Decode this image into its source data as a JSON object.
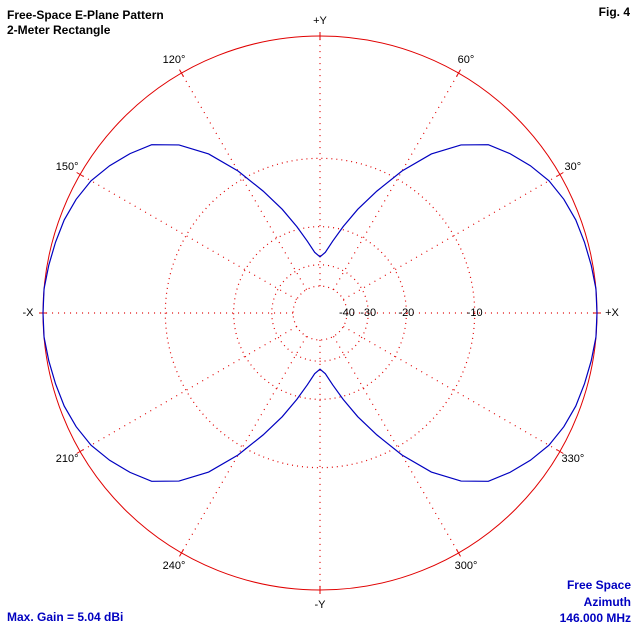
{
  "chart_data": {
    "type": "polar",
    "title": "Free-Space E-Plane Pattern",
    "subtitle": "2-Meter Rectangle",
    "figure_label": "Fig. 4",
    "annotations": [
      "Max. Gain = 5.04 dBi",
      "Free Space",
      "Azimuth",
      "146.000 MHz"
    ],
    "scale": "arrl-log",
    "rmax": 0,
    "rticks": [
      -40,
      -30,
      -20,
      -10
    ],
    "thetaticks": [
      {
        "value": 0,
        "label": "+X"
      },
      {
        "value": 30,
        "label": "30°"
      },
      {
        "value": 60,
        "label": "60°"
      },
      {
        "value": 90,
        "label": "+Y"
      },
      {
        "value": 120,
        "label": "120°"
      },
      {
        "value": 150,
        "label": "150°"
      },
      {
        "value": 180,
        "label": "-X"
      },
      {
        "value": 210,
        "label": "210°"
      },
      {
        "value": 240,
        "label": "240°"
      },
      {
        "value": 270,
        "label": "-Y"
      },
      {
        "value": 300,
        "label": "300°"
      },
      {
        "value": 330,
        "label": "330°"
      }
    ],
    "grid": true,
    "grid_color": "#e00000",
    "series": [
      {
        "color": "#0000c0",
        "theta": [
          0,
          5,
          10,
          15,
          20,
          25,
          30,
          35,
          40,
          45,
          50,
          55,
          60,
          65,
          70,
          75,
          80,
          85,
          90,
          95,
          100,
          105,
          110,
          115,
          120,
          125,
          130,
          135,
          140,
          145,
          150,
          155,
          160,
          165,
          170,
          175,
          180,
          185,
          190,
          195,
          200,
          205,
          210,
          215,
          220,
          225,
          230,
          235,
          240,
          245,
          250,
          255,
          260,
          265,
          270,
          275,
          280,
          285,
          290,
          295,
          300,
          305,
          310,
          315,
          320,
          325,
          330,
          335,
          340,
          345,
          350,
          355
        ],
        "values": [
          0,
          0,
          -0.1,
          -0.2,
          -0.3,
          -0.5,
          -0.8,
          -1.3,
          -1.9,
          -2.6,
          -4.0,
          -6.1,
          -9.0,
          -12.4,
          -15.8,
          -19.4,
          -22.9,
          -26.0,
          -27.4,
          -26.0,
          -22.9,
          -19.4,
          -15.8,
          -12.4,
          -9.0,
          -6.1,
          -4.0,
          -2.6,
          -1.9,
          -1.3,
          -0.8,
          -0.5,
          -0.3,
          -0.2,
          -0.1,
          0,
          0,
          0,
          -0.1,
          -0.2,
          -0.3,
          -0.5,
          -0.8,
          -1.3,
          -1.9,
          -2.6,
          -4.0,
          -6.1,
          -9.0,
          -12.4,
          -15.8,
          -19.4,
          -22.9,
          -26.0,
          -27.4,
          -26.0,
          -22.9,
          -19.4,
          -15.8,
          -12.4,
          -9.0,
          -6.1,
          -4.0,
          -2.6,
          -1.9,
          -1.3,
          -0.8,
          -0.5,
          -0.3,
          -0.2,
          -0.1,
          0
        ]
      }
    ]
  }
}
